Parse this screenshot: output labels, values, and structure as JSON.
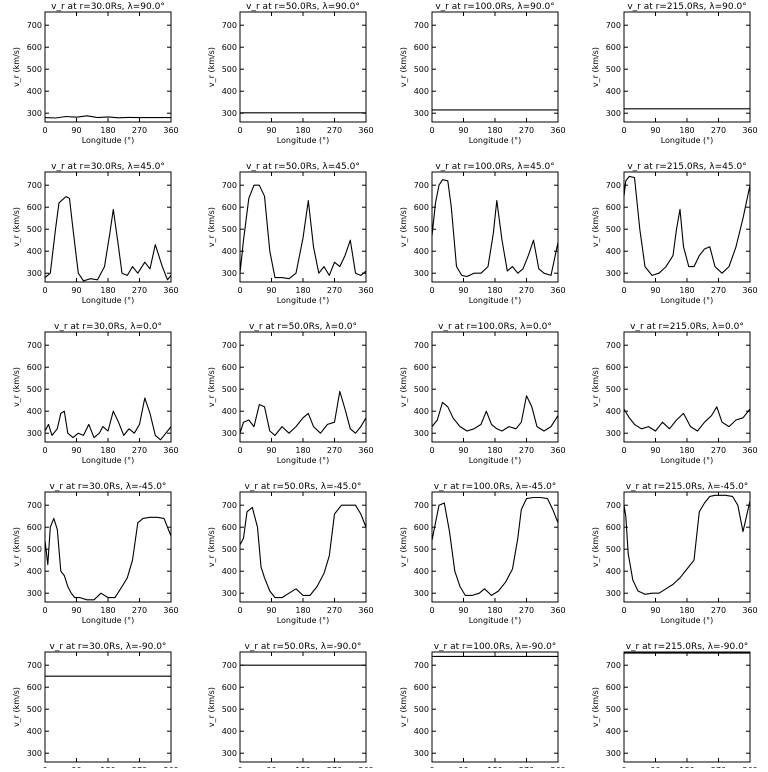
{
  "figure": {
    "xlabel": "Longitude (°)",
    "ylabel": "v_r (km/s)",
    "xticks": [
      "0",
      "90",
      "180",
      "270",
      "360"
    ],
    "yticks": [
      "300",
      "400",
      "500",
      "600",
      "700"
    ]
  },
  "chart_data": [
    {
      "type": "line",
      "title": "v_r at r=30.0Rs, λ=90.0°",
      "xlim": [
        0,
        360
      ],
      "ylim": [
        260,
        760
      ],
      "x": [
        0,
        30,
        60,
        90,
        120,
        150,
        180,
        210,
        240,
        270,
        300,
        330,
        360
      ],
      "series": [
        {
          "values": [
            280,
            278,
            285,
            282,
            288,
            280,
            283,
            279,
            281,
            280,
            280,
            280,
            280
          ]
        }
      ]
    },
    {
      "type": "line",
      "title": "v_r at r=50.0Rs, λ=90.0°",
      "xlim": [
        0,
        360
      ],
      "ylim": [
        260,
        760
      ],
      "x": [
        0,
        90,
        180,
        270,
        360
      ],
      "series": [
        {
          "values": [
            302,
            302,
            302,
            302,
            302
          ]
        }
      ]
    },
    {
      "type": "line",
      "title": "v_r at r=100.0Rs, λ=90.0°",
      "xlim": [
        0,
        360
      ],
      "ylim": [
        260,
        760
      ],
      "x": [
        0,
        90,
        180,
        270,
        360
      ],
      "series": [
        {
          "values": [
            315,
            315,
            315,
            315,
            315
          ]
        }
      ]
    },
    {
      "type": "line",
      "title": "v_r at r=215.0Rs, λ=90.0°",
      "xlim": [
        0,
        360
      ],
      "ylim": [
        260,
        760
      ],
      "x": [
        0,
        90,
        180,
        270,
        360
      ],
      "series": [
        {
          "values": [
            320,
            320,
            320,
            320,
            320
          ]
        }
      ]
    },
    {
      "type": "line",
      "title": "v_r at r=30.0Rs, λ=45.0°",
      "xlim": [
        0,
        360
      ],
      "ylim": [
        260,
        760
      ],
      "x": [
        0,
        15,
        30,
        40,
        60,
        70,
        80,
        95,
        110,
        130,
        150,
        170,
        185,
        195,
        210,
        220,
        235,
        250,
        265,
        285,
        300,
        315,
        335,
        350,
        360
      ],
      "series": [
        {
          "values": [
            280,
            300,
            500,
            620,
            648,
            640,
            500,
            300,
            265,
            275,
            270,
            330,
            480,
            590,
            420,
            300,
            290,
            330,
            300,
            350,
            320,
            430,
            330,
            270,
            290
          ]
        }
      ]
    },
    {
      "type": "line",
      "title": "v_r at r=50.0Rs, λ=45.0°",
      "xlim": [
        0,
        360
      ],
      "ylim": [
        260,
        760
      ],
      "x": [
        0,
        10,
        25,
        40,
        55,
        70,
        85,
        100,
        120,
        140,
        160,
        180,
        195,
        210,
        225,
        240,
        255,
        270,
        285,
        300,
        315,
        330,
        345,
        360
      ],
      "series": [
        {
          "values": [
            300,
            450,
            640,
            700,
            700,
            650,
            400,
            280,
            280,
            275,
            300,
            460,
            630,
            420,
            300,
            330,
            290,
            350,
            330,
            380,
            450,
            300,
            290,
            310
          ]
        }
      ]
    },
    {
      "type": "line",
      "title": "v_r at r=100.0Rs, λ=45.0°",
      "xlim": [
        0,
        360
      ],
      "ylim": [
        260,
        760
      ],
      "x": [
        0,
        10,
        20,
        30,
        45,
        55,
        70,
        85,
        100,
        120,
        140,
        160,
        175,
        185,
        200,
        215,
        230,
        245,
        260,
        275,
        290,
        305,
        320,
        340,
        360
      ],
      "series": [
        {
          "values": [
            470,
            620,
            700,
            725,
            720,
            600,
            330,
            290,
            285,
            300,
            300,
            330,
            480,
            630,
            450,
            310,
            330,
            300,
            320,
            380,
            450,
            320,
            300,
            290,
            440
          ]
        }
      ]
    },
    {
      "type": "line",
      "title": "v_r at r=215.0Rs, λ=45.0°",
      "xlim": [
        0,
        360
      ],
      "ylim": [
        260,
        760
      ],
      "x": [
        0,
        5,
        15,
        30,
        45,
        60,
        80,
        100,
        120,
        140,
        150,
        160,
        170,
        185,
        200,
        215,
        230,
        245,
        260,
        280,
        300,
        320,
        340,
        360
      ],
      "series": [
        {
          "values": [
            650,
            720,
            740,
            735,
            500,
            330,
            290,
            300,
            330,
            380,
            500,
            590,
            420,
            330,
            330,
            380,
            410,
            420,
            330,
            300,
            330,
            420,
            550,
            700
          ]
        }
      ]
    },
    {
      "type": "line",
      "title": "v_r at r=30.0Rs, λ=0.0°",
      "xlim": [
        0,
        360
      ],
      "ylim": [
        260,
        760
      ],
      "x": [
        0,
        10,
        20,
        35,
        45,
        55,
        65,
        80,
        95,
        110,
        125,
        140,
        155,
        165,
        180,
        195,
        210,
        225,
        240,
        255,
        270,
        285,
        300,
        315,
        330,
        345,
        360
      ],
      "series": [
        {
          "values": [
            310,
            340,
            290,
            320,
            390,
            400,
            300,
            280,
            300,
            290,
            340,
            280,
            300,
            330,
            310,
            400,
            350,
            290,
            320,
            300,
            340,
            460,
            390,
            290,
            270,
            300,
            330
          ]
        }
      ]
    },
    {
      "type": "line",
      "title": "v_r at r=50.0Rs, λ=0.0°",
      "xlim": [
        0,
        360
      ],
      "ylim": [
        260,
        760
      ],
      "x": [
        0,
        10,
        25,
        40,
        55,
        70,
        85,
        100,
        120,
        140,
        160,
        180,
        195,
        210,
        230,
        250,
        270,
        285,
        300,
        315,
        330,
        345,
        360
      ],
      "series": [
        {
          "values": [
            300,
            350,
            360,
            330,
            430,
            420,
            310,
            290,
            330,
            300,
            330,
            370,
            390,
            330,
            300,
            340,
            350,
            490,
            410,
            320,
            300,
            330,
            370
          ]
        }
      ]
    },
    {
      "type": "line",
      "title": "v_r at r=100.0Rs, λ=0.0°",
      "xlim": [
        0,
        360
      ],
      "ylim": [
        260,
        760
      ],
      "x": [
        0,
        15,
        30,
        45,
        60,
        80,
        100,
        120,
        140,
        155,
        170,
        185,
        200,
        220,
        240,
        255,
        270,
        285,
        300,
        320,
        340,
        360
      ],
      "series": [
        {
          "values": [
            330,
            360,
            440,
            420,
            370,
            330,
            310,
            320,
            340,
            400,
            340,
            320,
            310,
            330,
            320,
            350,
            470,
            420,
            330,
            310,
            330,
            380
          ]
        }
      ]
    },
    {
      "type": "line",
      "title": "v_r at r=215.0Rs, λ=0.0°",
      "xlim": [
        0,
        360
      ],
      "ylim": [
        260,
        760
      ],
      "x": [
        0,
        15,
        30,
        50,
        70,
        90,
        110,
        130,
        150,
        170,
        190,
        210,
        230,
        250,
        265,
        280,
        300,
        320,
        340,
        360
      ],
      "series": [
        {
          "values": [
            410,
            370,
            340,
            320,
            330,
            310,
            350,
            320,
            360,
            390,
            330,
            310,
            350,
            380,
            420,
            350,
            330,
            360,
            370,
            410
          ]
        }
      ]
    },
    {
      "type": "line",
      "title": "v_r at r=30.0Rs, λ=-45.0°",
      "xlim": [
        0,
        360
      ],
      "ylim": [
        260,
        760
      ],
      "x": [
        0,
        8,
        15,
        25,
        35,
        45,
        55,
        65,
        75,
        85,
        100,
        120,
        140,
        160,
        180,
        200,
        220,
        235,
        250,
        265,
        280,
        300,
        320,
        340,
        360
      ],
      "series": [
        {
          "values": [
            540,
            430,
            600,
            640,
            590,
            400,
            380,
            330,
            300,
            280,
            280,
            270,
            270,
            300,
            280,
            280,
            330,
            370,
            450,
            620,
            640,
            645,
            645,
            640,
            560
          ]
        }
      ]
    },
    {
      "type": "line",
      "title": "v_r at r=50.0Rs, λ=-45.0°",
      "xlim": [
        0,
        360
      ],
      "ylim": [
        260,
        760
      ],
      "x": [
        0,
        10,
        20,
        35,
        50,
        60,
        70,
        85,
        100,
        120,
        140,
        160,
        180,
        200,
        220,
        240,
        255,
        270,
        290,
        310,
        330,
        345,
        360
      ],
      "series": [
        {
          "values": [
            520,
            550,
            670,
            690,
            600,
            420,
            370,
            310,
            280,
            280,
            300,
            320,
            290,
            290,
            330,
            390,
            470,
            660,
            700,
            700,
            700,
            660,
            600
          ]
        }
      ]
    },
    {
      "type": "line",
      "title": "v_r at r=100.0Rs, λ=-45.0°",
      "xlim": [
        0,
        360
      ],
      "ylim": [
        260,
        760
      ],
      "x": [
        0,
        10,
        20,
        35,
        50,
        65,
        80,
        95,
        115,
        135,
        150,
        170,
        190,
        210,
        230,
        245,
        255,
        270,
        290,
        310,
        330,
        345,
        360
      ],
      "series": [
        {
          "values": [
            540,
            620,
            700,
            710,
            580,
            400,
            330,
            290,
            290,
            300,
            320,
            290,
            310,
            350,
            410,
            550,
            680,
            730,
            735,
            735,
            730,
            680,
            620
          ]
        }
      ]
    },
    {
      "type": "line",
      "title": "v_r at r=215.0Rs, λ=-45.0°",
      "xlim": [
        0,
        360
      ],
      "ylim": [
        260,
        760
      ],
      "x": [
        0,
        5,
        12,
        25,
        40,
        60,
        80,
        100,
        120,
        140,
        160,
        180,
        200,
        215,
        230,
        245,
        260,
        290,
        310,
        325,
        340,
        350,
        360
      ],
      "series": [
        {
          "values": [
            700,
            650,
            480,
            360,
            310,
            295,
            300,
            300,
            320,
            340,
            370,
            410,
            450,
            670,
            710,
            740,
            745,
            745,
            740,
            700,
            580,
            650,
            720
          ]
        }
      ]
    },
    {
      "type": "line",
      "title": "v_r at r=30.0Rs, λ=-90.0°",
      "xlim": [
        0,
        360
      ],
      "ylim": [
        260,
        760
      ],
      "x": [
        0,
        90,
        180,
        270,
        360
      ],
      "series": [
        {
          "values": [
            650,
            650,
            650,
            650,
            650
          ]
        }
      ]
    },
    {
      "type": "line",
      "title": "v_r at r=50.0Rs, λ=-90.0°",
      "xlim": [
        0,
        360
      ],
      "ylim": [
        260,
        760
      ],
      "x": [
        0,
        90,
        180,
        270,
        360
      ],
      "series": [
        {
          "values": [
            700,
            700,
            700,
            700,
            700
          ]
        }
      ]
    },
    {
      "type": "line",
      "title": "v_r at r=100.0Rs, λ=-90.0°",
      "xlim": [
        0,
        360
      ],
      "ylim": [
        260,
        760
      ],
      "x": [
        0,
        90,
        180,
        270,
        360
      ],
      "series": [
        {
          "values": [
            740,
            740,
            740,
            740,
            740
          ]
        }
      ]
    },
    {
      "type": "line",
      "title": "v_r at r=215.0Rs, λ=-90.0°",
      "xlim": [
        0,
        360
      ],
      "ylim": [
        260,
        760
      ],
      "x": [
        0,
        90,
        180,
        270,
        360
      ],
      "series": [
        {
          "values": [
            755,
            755,
            755,
            755,
            755
          ]
        }
      ]
    }
  ]
}
